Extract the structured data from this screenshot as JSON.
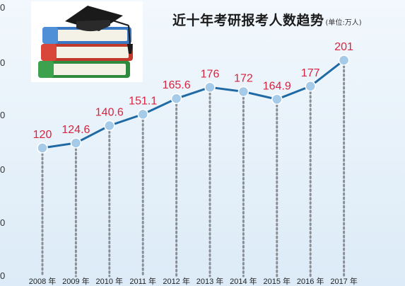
{
  "chart_data": {
    "type": "line",
    "title": "近十年考研报考人数趋势",
    "unit": "(单位:万人)",
    "categories": [
      "2008 年",
      "2009 年",
      "2010 年",
      "2011 年",
      "2012 年",
      "2013 年",
      "2014 年",
      "2015 年",
      "2016 年",
      "2017 年"
    ],
    "values": [
      120,
      124.6,
      140.6,
      151.1,
      165.6,
      176,
      172,
      164.9,
      177,
      201
    ],
    "value_labels": [
      "120",
      "124.6",
      "140.6",
      "151.1",
      "165.6",
      "176",
      "172",
      "164.9",
      "177",
      "201"
    ],
    "ytick_labels": [
      "0",
      "0",
      "0",
      "0",
      "0",
      "0"
    ],
    "xlabel": "",
    "ylabel": "",
    "grid": false,
    "colors": {
      "line": "#1f6aa5",
      "marker": "#a6cbe8",
      "label": "#d8243f",
      "drop": "#8a8f96"
    },
    "illustration": "graduation-cap-on-books"
  }
}
